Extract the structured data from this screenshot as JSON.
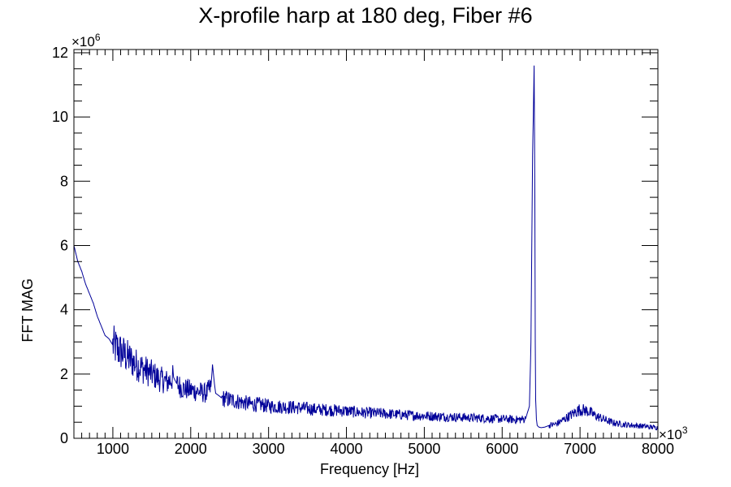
{
  "chart_data": {
    "type": "line",
    "title": "X-profile harp at 180 deg, Fiber #6",
    "xlabel": "Frequency [Hz]",
    "ylabel": "FFT MAG",
    "x_multiplier": "×10",
    "x_multiplier_exp": "3",
    "y_multiplier": "×10",
    "y_multiplier_exp": "6",
    "xlim": [
      500,
      8000
    ],
    "ylim": [
      0,
      12.1
    ],
    "x_ticks": [
      1000,
      2000,
      3000,
      4000,
      5000,
      6000,
      7000,
      8000
    ],
    "x_tick_labels": [
      "1000",
      "2000",
      "3000",
      "4000",
      "5000",
      "6000",
      "7000",
      "8000"
    ],
    "y_ticks": [
      0,
      2,
      4,
      6,
      8,
      10,
      12
    ],
    "y_tick_labels": [
      "0",
      "2",
      "4",
      "6",
      "8",
      "10",
      "12"
    ],
    "grid": false,
    "legend": "none",
    "line_color": "#000099",
    "series": [
      {
        "x": [
          500,
          550,
          600,
          650,
          700,
          750,
          800,
          850,
          900,
          950,
          1000,
          1100,
          1200,
          1300,
          1400,
          1500,
          1600,
          1700,
          1780,
          1820,
          1900,
          2000,
          2100,
          2200,
          2260,
          2280,
          2300,
          2320,
          2350,
          2400,
          2500,
          2600,
          2700,
          2800,
          2900,
          3000,
          3200,
          3400,
          3600,
          3800,
          4000,
          4200,
          4400,
          4600,
          4800,
          5000,
          5200,
          5400,
          5600,
          5800,
          6000,
          6200,
          6300,
          6350,
          6370,
          6390,
          6400,
          6410,
          6420,
          6425,
          6430,
          6440,
          6450,
          6470,
          6500,
          6550,
          6600,
          6700,
          6800,
          6900,
          7000,
          7100,
          7200,
          7300,
          7400,
          7500,
          7600,
          7700,
          7800,
          7900,
          8000
        ],
        "y": [
          6.0,
          5.5,
          5.2,
          4.8,
          4.5,
          4.2,
          3.8,
          3.5,
          3.2,
          3.1,
          2.9,
          2.7,
          2.5,
          2.3,
          2.15,
          2.0,
          1.85,
          1.75,
          1.9,
          1.7,
          1.55,
          1.5,
          1.45,
          1.4,
          1.6,
          2.3,
          1.8,
          1.4,
          1.35,
          1.25,
          1.2,
          1.15,
          1.1,
          1.05,
          1.05,
          1.0,
          0.98,
          0.95,
          0.9,
          0.88,
          0.85,
          0.8,
          0.78,
          0.75,
          0.72,
          0.7,
          0.68,
          0.66,
          0.64,
          0.62,
          0.6,
          0.58,
          0.6,
          1.0,
          3.0,
          8.8,
          10.0,
          11.6,
          7.5,
          3.0,
          1.2,
          0.6,
          0.4,
          0.35,
          0.33,
          0.35,
          0.4,
          0.45,
          0.6,
          0.75,
          0.9,
          0.85,
          0.7,
          0.6,
          0.5,
          0.45,
          0.42,
          0.4,
          0.38,
          0.35,
          0.33
        ]
      }
    ]
  }
}
